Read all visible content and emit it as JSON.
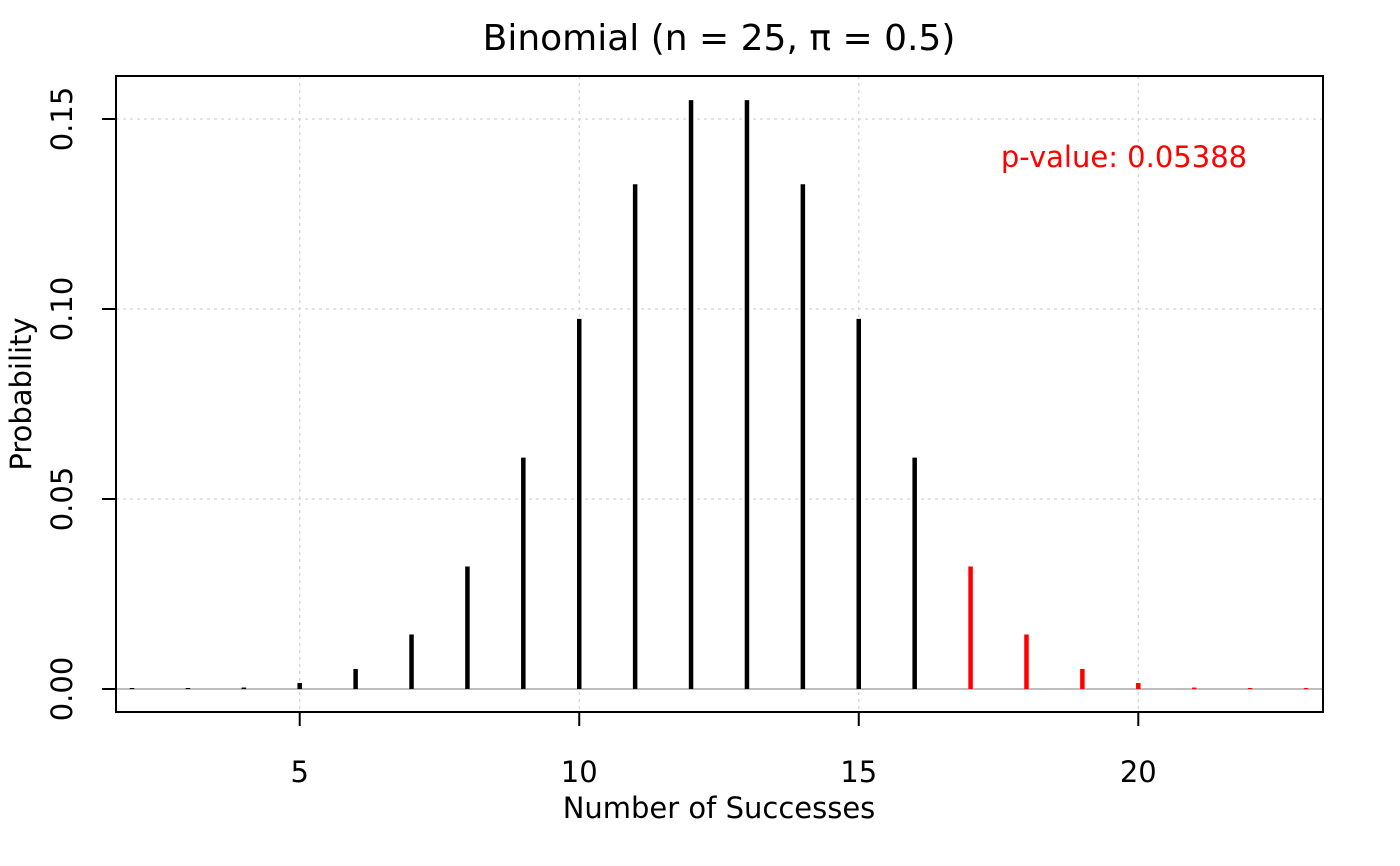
{
  "chart_data": {
    "type": "bar",
    "title": "Binomial (n = 25, π = 0.5)",
    "xlabel": "Number of Successes",
    "ylabel": "Probability",
    "xlim": [
      2,
      23
    ],
    "ylim": [
      0,
      0.16
    ],
    "xticks": [
      5,
      10,
      15,
      20
    ],
    "yticks": [
      0.0,
      0.05,
      0.1,
      0.15
    ],
    "ytick_labels": [
      "0.00",
      "0.05",
      "0.10",
      "0.15"
    ],
    "grid": true,
    "x": [
      2,
      3,
      4,
      5,
      6,
      7,
      8,
      9,
      10,
      11,
      12,
      13,
      14,
      15,
      16,
      17,
      18,
      19,
      20,
      21,
      22,
      23
    ],
    "values": [
      8.9e-06,
      6.86e-05,
      0.0003799,
      0.0015834,
      0.0052779,
      0.0143257,
      0.0322334,
      0.0608853,
      0.0974166,
      0.1328408,
      0.154981,
      0.154981,
      0.1328408,
      0.0974166,
      0.0608853,
      0.0322334,
      0.0143257,
      0.0052779,
      0.0015834,
      0.0003799,
      6.86e-05,
      8.9e-06
    ],
    "highlight_from_x": 17,
    "colors": {
      "normal": "#000000",
      "highlight": "#ff0000",
      "grid": "#d3d3d3",
      "baseline": "#bebebe"
    },
    "annotation": {
      "text": "p-value: 0.05388",
      "color": "#ff0000"
    }
  }
}
